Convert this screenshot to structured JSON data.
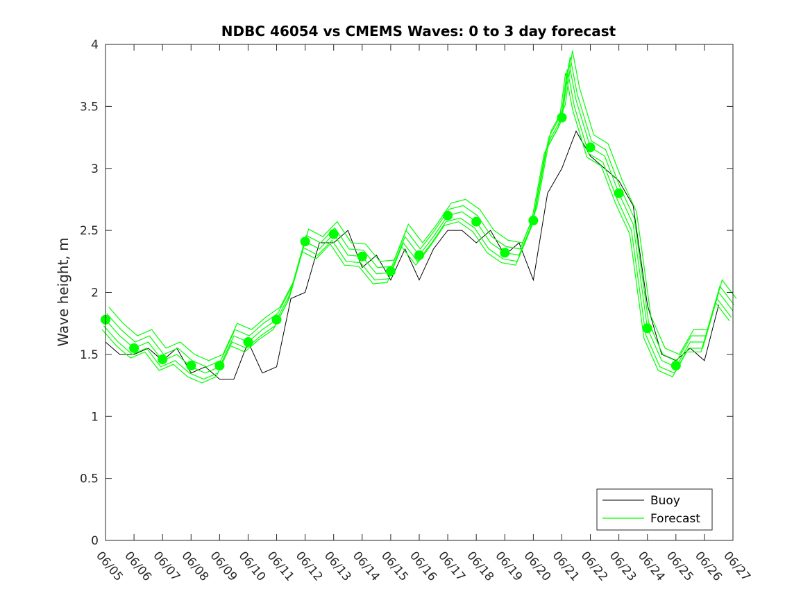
{
  "chart_data": {
    "type": "line",
    "title": "NDBC 46054 vs CMEMS Waves: 0 to 3 day forecast",
    "xlabel": "",
    "ylabel": "Wave height, m",
    "xlim": [
      "06/05",
      "06/27"
    ],
    "ylim": [
      0,
      4
    ],
    "x_tick_labels": [
      "06/05",
      "06/06",
      "06/07",
      "06/08",
      "06/09",
      "06/10",
      "06/11",
      "06/12",
      "06/13",
      "06/14",
      "06/15",
      "06/16",
      "06/17",
      "06/18",
      "06/19",
      "06/20",
      "06/21",
      "06/22",
      "06/23",
      "06/24",
      "06/25",
      "06/26",
      "06/27"
    ],
    "y_tick_labels": [
      "0",
      "0.5",
      "1",
      "1.5",
      "2",
      "2.5",
      "3",
      "3.5",
      "4"
    ],
    "y_ticks": [
      0,
      0.5,
      1,
      1.5,
      2,
      2.5,
      3,
      3.5,
      4
    ],
    "grid": false,
    "legend": {
      "placement": "bottom-right",
      "entries": [
        "Buoy",
        "Forecast"
      ]
    },
    "colors": {
      "buoy": "#000000",
      "forecast": "#00ff00",
      "axes": "#262626"
    },
    "series": [
      {
        "name": "Buoy",
        "x": [
          "06/05 00:00",
          "06/05 12:00",
          "06/06 00:00",
          "06/06 12:00",
          "06/07 00:00",
          "06/07 12:00",
          "06/08 00:00",
          "06/08 12:00",
          "06/09 00:00",
          "06/09 12:00",
          "06/10 00:00",
          "06/10 12:00",
          "06/11 00:00",
          "06/11 12:00",
          "06/12 00:00",
          "06/12 12:00",
          "06/13 00:00",
          "06/13 12:00",
          "06/14 00:00",
          "06/14 12:00",
          "06/15 00:00",
          "06/15 12:00",
          "06/16 00:00",
          "06/16 12:00",
          "06/17 00:00",
          "06/17 12:00",
          "06/18 00:00",
          "06/18 12:00",
          "06/19 00:00",
          "06/19 12:00",
          "06/20 00:00",
          "06/20 12:00",
          "06/21 00:00",
          "06/21 12:00",
          "06/22 00:00",
          "06/22 12:00",
          "06/23 00:00",
          "06/23 12:00",
          "06/24 00:00",
          "06/24 12:00",
          "06/25 00:00",
          "06/25 12:00",
          "06/26 00:00",
          "06/26 12:00"
        ],
        "values": [
          1.6,
          1.5,
          1.5,
          1.55,
          1.45,
          1.55,
          1.35,
          1.4,
          1.3,
          1.3,
          1.6,
          1.35,
          1.4,
          1.95,
          2.0,
          2.4,
          2.4,
          2.5,
          2.2,
          2.3,
          2.1,
          2.35,
          2.1,
          2.35,
          2.5,
          2.5,
          2.4,
          2.5,
          2.3,
          2.4,
          2.1,
          2.8,
          3.0,
          3.3,
          3.1,
          3.0,
          2.9,
          2.7,
          1.9,
          1.5,
          1.45,
          1.55,
          1.45,
          1.9
        ]
      },
      {
        "name": "Forecast",
        "x": [
          "06/05 00:00",
          "06/05 12:00",
          "06/06 00:00",
          "06/06 12:00",
          "06/07 00:00",
          "06/07 12:00",
          "06/08 00:00",
          "06/08 12:00",
          "06/09 00:00",
          "06/09 12:00",
          "06/10 00:00",
          "06/10 12:00",
          "06/11 00:00",
          "06/11 12:00",
          "06/12 00:00",
          "06/12 12:00",
          "06/13 00:00",
          "06/13 12:00",
          "06/14 00:00",
          "06/14 12:00",
          "06/15 00:00",
          "06/15 12:00",
          "06/16 00:00",
          "06/16 12:00",
          "06/17 00:00",
          "06/17 12:00",
          "06/18 00:00",
          "06/18 12:00",
          "06/19 00:00",
          "06/19 12:00",
          "06/20 00:00",
          "06/20 12:00",
          "06/21 00:00",
          "06/21 06:00",
          "06/21 12:00",
          "06/22 00:00",
          "06/22 12:00",
          "06/23 00:00",
          "06/23 12:00",
          "06/24 00:00",
          "06/24 12:00",
          "06/25 00:00",
          "06/25 12:00",
          "06/26 00:00",
          "06/26 12:00",
          "06/27 00:00"
        ],
        "values": [
          1.78,
          1.65,
          1.55,
          1.6,
          1.45,
          1.5,
          1.4,
          1.35,
          1.4,
          1.65,
          1.6,
          1.7,
          1.78,
          2.0,
          2.41,
          2.35,
          2.47,
          2.3,
          2.29,
          2.15,
          2.16,
          2.45,
          2.3,
          2.45,
          2.62,
          2.65,
          2.57,
          2.4,
          2.32,
          2.3,
          2.58,
          3.2,
          3.41,
          3.85,
          3.55,
          3.17,
          3.1,
          2.8,
          2.55,
          1.71,
          1.45,
          1.4,
          1.6,
          1.6,
          2.0,
          1.85
        ]
      }
    ],
    "forecast_markers": {
      "name": "Forecast",
      "x": [
        "06/05",
        "06/06",
        "06/07",
        "06/08",
        "06/09",
        "06/10",
        "06/11",
        "06/12",
        "06/13",
        "06/14",
        "06/15",
        "06/16",
        "06/17",
        "06/18",
        "06/19",
        "06/20",
        "06/21",
        "06/22",
        "06/23",
        "06/24",
        "06/25"
      ],
      "values": [
        1.78,
        1.55,
        1.46,
        1.41,
        1.41,
        1.6,
        1.78,
        2.41,
        2.47,
        2.29,
        2.17,
        2.3,
        2.62,
        2.57,
        2.32,
        2.58,
        3.41,
        3.17,
        2.8,
        1.71,
        1.41
      ]
    }
  }
}
